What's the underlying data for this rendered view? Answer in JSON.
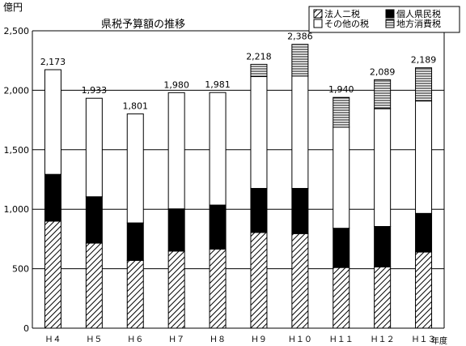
{
  "chart_data": {
    "type": "bar",
    "stacked": true,
    "title": "県税予算額の推移",
    "ylabel": "億円",
    "xlabel": "年度",
    "ylim": [
      0,
      2500
    ],
    "yticks": [
      0,
      500,
      1000,
      1500,
      2000,
      2500
    ],
    "ytick_labels": [
      "0",
      "500",
      "1,000",
      "1,500",
      "2,000",
      "2,500"
    ],
    "grid": true,
    "legend_position": "top-right",
    "categories": [
      "H4",
      "H5",
      "H6",
      "H7",
      "H8",
      "H9",
      "H10",
      "H11",
      "H12",
      "H13"
    ],
    "category_labels": [
      "Ｈ４",
      "Ｈ５",
      "Ｈ６",
      "Ｈ７",
      "Ｈ８",
      "Ｈ９",
      "Ｈ１０",
      "Ｈ１１",
      "Ｈ１２",
      "Ｈ１３"
    ],
    "series": [
      {
        "name": "法人二税",
        "values": [
          900,
          715,
          570,
          648,
          665,
          805,
          795,
          510,
          515,
          640
        ],
        "pattern": "diagonal",
        "color": "#000000"
      },
      {
        "name": "個人県民税",
        "values": [
          393,
          390,
          315,
          355,
          370,
          370,
          380,
          330,
          340,
          325
        ],
        "pattern": "solid",
        "color": "#000000"
      },
      {
        "name": "その他の税",
        "values": [
          880,
          828,
          916,
          977,
          946,
          940,
          945,
          850,
          990,
          945
        ],
        "pattern": "white",
        "color": "#ffffff"
      },
      {
        "name": "地方消費税",
        "values": [
          0,
          0,
          0,
          0,
          0,
          103,
          266,
          250,
          244,
          279
        ],
        "pattern": "horizontal",
        "color": "#000000"
      }
    ],
    "totals": [
      2173,
      1933,
      1801,
      1980,
      1981,
      2218,
      2386,
      1940,
      2089,
      2189
    ],
    "total_labels": [
      "2,173",
      "1,933",
      "1,801",
      "1,980",
      "1,981",
      "2,218",
      "2,386",
      "1,940",
      "2,089",
      "2,189"
    ]
  }
}
